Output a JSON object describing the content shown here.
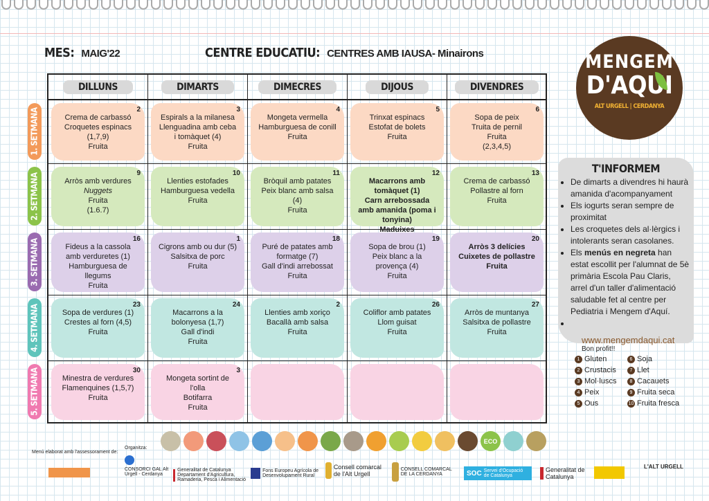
{
  "header": {
    "month_label": "MES:",
    "month": "MAIG'22",
    "centre_label": "CENTRE EDUCATIU:",
    "centre": "CENTRES AMB IAUSA- Minairons"
  },
  "days": [
    "DILLUNS",
    "DIMARTS",
    "DIMECRES",
    "DIJOUS",
    "DIVENDRES"
  ],
  "weeks": [
    {
      "label": "1. SETMANA",
      "color": "#f39a5a",
      "cell_color": "#fcd9c4",
      "cells": [
        {
          "day": "2",
          "lines": [
            "Crema de carbassó",
            "Croquetes espinacs",
            "(1,7,9)",
            "Fruita"
          ]
        },
        {
          "day": "3",
          "lines": [
            "Espirals a la milanesa",
            "Llenguadina amb ceba",
            "i tomàquet (4)",
            "Fruita"
          ]
        },
        {
          "day": "4",
          "lines": [
            "Mongeta vermella",
            "Hamburguesa de conill",
            "Fruita"
          ]
        },
        {
          "day": "5",
          "lines": [
            "Trinxat espinacs",
            "Estofat de bolets",
            "Fruita"
          ]
        },
        {
          "day": "6",
          "lines": [
            "Sopa de peix",
            "Truita de pernil",
            "Fruita",
            "(2,3,4,5)"
          ]
        }
      ]
    },
    {
      "label": "2. SETMANA",
      "color": "#8cc34a",
      "cell_color": "#d5e9bd",
      "cells": [
        {
          "day": "9",
          "lines": [
            "Arròs amb verdures",
            "Nuggets",
            "Fruita",
            "(1.6.7)"
          ],
          "italic": [
            1
          ]
        },
        {
          "day": "10",
          "lines": [
            "Llenties estofades",
            "Hamburguesa vedella",
            "Fruita"
          ]
        },
        {
          "day": "11",
          "lines": [
            "Bròquil amb patates",
            "Peix blanc amb salsa",
            "(4)",
            "Fruita"
          ]
        },
        {
          "day": "12",
          "lines": [
            "Macarrons amb",
            "tomàquet (1)",
            "Carn arrebossada",
            "amb amanida (poma i",
            "tonyina)",
            "Maduixes"
          ],
          "bold": true
        },
        {
          "day": "13",
          "lines": [
            "Crema de carbassó",
            "Pollastre al forn",
            "Fruita"
          ]
        }
      ]
    },
    {
      "label": "3. SETMANA",
      "color": "#9a6bb0",
      "cell_color": "#ddd0e9",
      "cells": [
        {
          "day": "16",
          "lines": [
            "Fideus a la cassola",
            "amb verduretes (1)",
            "Hamburguesa de",
            "llegums",
            "Fruita"
          ]
        },
        {
          "day": "1",
          "lines": [
            "Cigrons amb ou dur (5)",
            "Salsitxa de porc",
            "Fruita"
          ]
        },
        {
          "day": "18",
          "lines": [
            "Puré de patates amb",
            "formatge (7)",
            "Gall d'indi arrebossat",
            "Fruita"
          ]
        },
        {
          "day": "19",
          "lines": [
            "Sopa de brou (1)",
            "Peix blanc a la",
            "provença (4)",
            "Fruita"
          ]
        },
        {
          "day": "20",
          "lines": [
            "Arròs 3 delícies",
            "Cuixetes de pollastre",
            "Fruita"
          ],
          "bold": true
        }
      ]
    },
    {
      "label": "4. SETMANA",
      "color": "#5fc4bb",
      "cell_color": "#c1e7e1",
      "cells": [
        {
          "day": "23",
          "lines": [
            "Sopa de verdures (1)",
            "Crestes al forn (4,5)",
            "Fruita"
          ]
        },
        {
          "day": "24",
          "lines": [
            "Macarrons a la",
            "bolonyesa (1,7)",
            "Gall d'indi",
            "Fruita"
          ]
        },
        {
          "day": "2",
          "lines": [
            "Llenties amb xoriço",
            "Bacallà amb salsa",
            "Fruita"
          ]
        },
        {
          "day": "26",
          "lines": [
            "Coliflor amb patates",
            "Llom guisat",
            "Fruita"
          ]
        },
        {
          "day": "27",
          "lines": [
            "Arròs de muntanya",
            "Salsitxa de pollastre",
            "Fruita"
          ]
        }
      ]
    },
    {
      "label": "5. SETMANA",
      "color": "#f07ab0",
      "cell_color": "#f9d4e4",
      "cells": [
        {
          "day": "30",
          "lines": [
            "Minestra de verdures",
            "Flamenquines (1,5,7)",
            "Fruita"
          ]
        },
        {
          "day": "3",
          "lines": [
            "Mongeta sortint de",
            "l'olla",
            "Botifarra",
            "Fruita"
          ]
        },
        {
          "day": "",
          "lines": []
        },
        {
          "day": "",
          "lines": []
        },
        {
          "day": "",
          "lines": []
        }
      ]
    }
  ],
  "logo": {
    "line1": "MENGEM",
    "line2": "D'AQUI",
    "line3": "ALT URGELL | CERDANYA"
  },
  "info": {
    "title": "T'INFORMEM",
    "bullets": [
      "De dimarts a divendres hi haurà amanida d'acompanyament",
      "Els iogurts seran sempre de proximitat",
      "Les croquetes dels al·lèrgics i intolerants seran casolanes."
    ],
    "bold_bullet": {
      "before": "Els ",
      "bold": "menús en negreta",
      "after": " han estat escollit per l'alumnat de 5è primària Escola Pau Claris, arrel d'un taller d'alimentació saludable fet al centre per Pediatria i Mengem d'Aquí."
    },
    "website": "www.mengemdaqui.cat",
    "closing": "Bon profit!!"
  },
  "allergens": [
    [
      "1",
      "Gluten"
    ],
    [
      "6",
      "Soja"
    ],
    [
      "2",
      "Crustacis"
    ],
    [
      "7",
      "Llet"
    ],
    [
      "3",
      "Mol·luscs"
    ],
    [
      "8",
      "Cacauets"
    ],
    [
      "4",
      "Peix"
    ],
    [
      "9",
      "Fruita seca"
    ],
    [
      "5",
      "Ous"
    ],
    [
      "10",
      "Fruita fresca"
    ]
  ],
  "icon_colors": [
    "#c8c0a8",
    "#f29a7a",
    "#c9505a",
    "#8fc3e6",
    "#5b9fd6",
    "#f6c08a",
    "#f0954a",
    "#7aa84a",
    "#a89a8a",
    "#f0a030",
    "#a8cc50",
    "#f2cc40",
    "#f0c060",
    "#6a4a30",
    "#8cc34a",
    "#8fd0d0",
    "#b8a060"
  ],
  "icon_eco_label": "ECO",
  "footer": {
    "advice": "Menú elaborat amb l'assessorament de:",
    "organizer": "Organitza:",
    "consorci": "CONSORCI GAL Alt Urgell - Cerdanya",
    "gencat_agri": "Generalitat de Catalunya Departament d'Agricultura, Ramaderia, Pesca i Alimentació",
    "feader": "Fons Europeu Agrícola de Desenvolupament Rural",
    "ccau": "Consell comarcal de l'Alt Urgell",
    "ccc": "CONSELL COMARCAL DE LA CERDANYA",
    "soc": "SOC",
    "soc_text": "Servei d'Ocupació de Catalunya",
    "gencat": "Generalitat de Catalunya",
    "altu": "L'ALT URGELL"
  }
}
